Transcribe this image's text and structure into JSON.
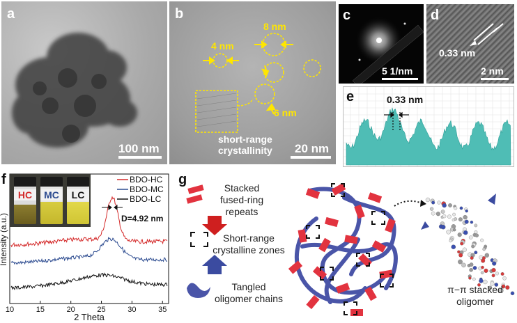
{
  "panels": {
    "a": {
      "label": "a",
      "scale": "100 nm"
    },
    "b": {
      "label": "b",
      "scale": "20 nm",
      "size1": "8 nm",
      "size2": "4 nm",
      "size3": "6 nm",
      "caption_line1": "short-range",
      "caption_line2": "crystallinity"
    },
    "c": {
      "label": "c",
      "scale": "5 1/nm"
    },
    "d": {
      "label": "d",
      "scale": "2 nm",
      "spacing": "0.33 nm"
    },
    "e": {
      "label": "e",
      "spacing": "0.33 nm"
    },
    "f": {
      "label": "f",
      "vial_hc": "HC",
      "vial_mc": "MC",
      "vial_lc": "LC",
      "annotation": "D=4.92 nm"
    },
    "g": {
      "label": "g",
      "legend1_line1": "Stacked",
      "legend1_line2": "fused-ring repeats",
      "legend2_line1": "Short-range",
      "legend2_line2": "crystalline zones",
      "legend3_line1": "Tangled",
      "legend3_line2": "oligomer chains",
      "stack_line1": "π−π stacked",
      "stack_line2": "oligomer"
    }
  },
  "colors": {
    "hc": "#d42a2a",
    "mc": "#2b4a8f",
    "lc": "#111111",
    "teal": "#3fb8b0",
    "red_block": "#e2333f",
    "blue_chain": "#4a55a8"
  },
  "chart_data": {
    "type": "line",
    "xlabel": "2 Theta",
    "ylabel": "Intensity (a.u.)",
    "xlim": [
      10,
      36
    ],
    "xticks": [
      "10",
      "15",
      "20",
      "25",
      "30",
      "35"
    ],
    "series": [
      {
        "name": "BDO-HC",
        "peak_x": 26.8
      },
      {
        "name": "BDO-MC",
        "peak_x": 26.6
      },
      {
        "name": "BDO-LC",
        "peak_x": 26.0
      }
    ]
  }
}
